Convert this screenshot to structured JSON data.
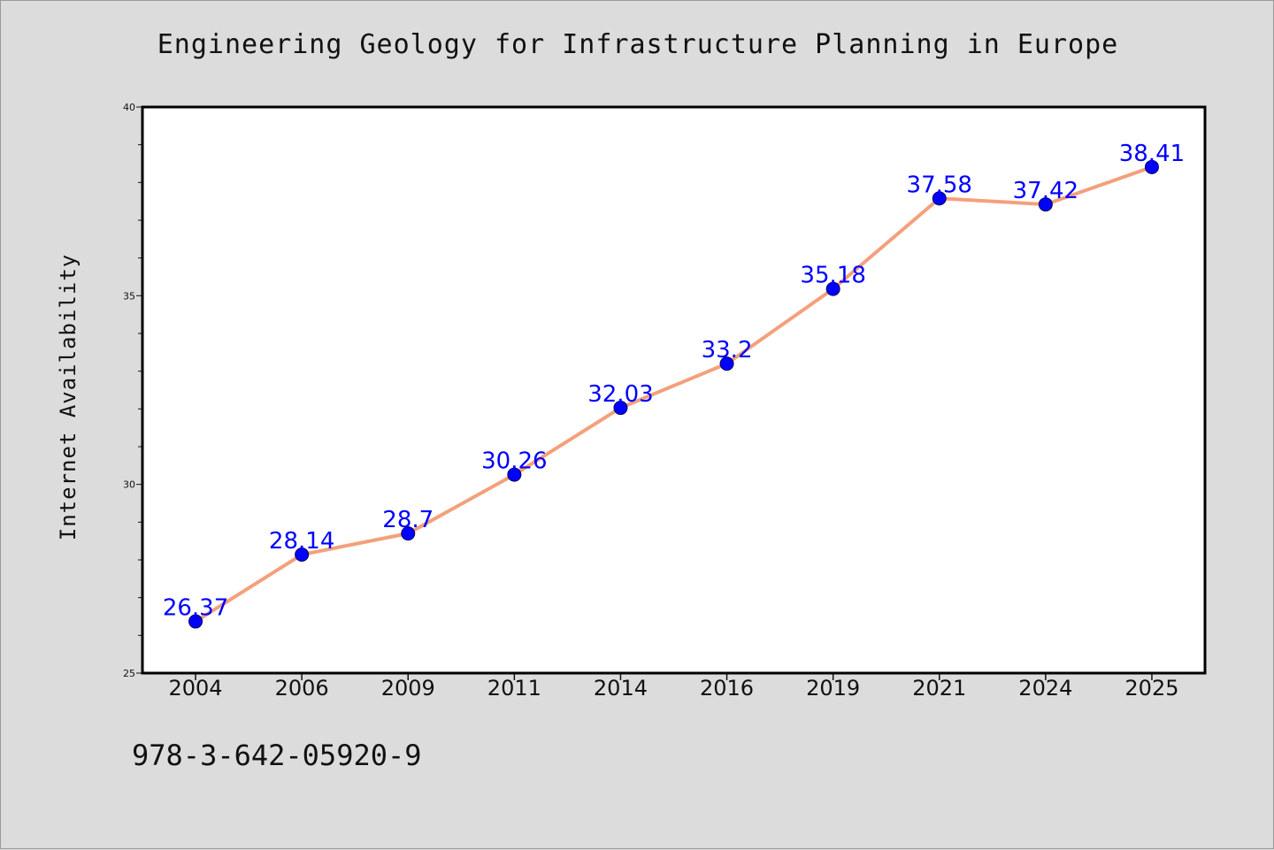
{
  "figure": {
    "title": "Engineering Geology for Infrastructure Planning in Europe",
    "footer_text": "978-3-642-05920-9",
    "background_color": "#dcdcdc"
  },
  "chart_data": {
    "type": "line",
    "title": "Engineering Geology for Infrastructure Planning in Europe",
    "xlabel": "",
    "ylabel": "Internet Availability",
    "categories": [
      "2004",
      "2006",
      "2009",
      "2011",
      "2014",
      "2016",
      "2019",
      "2021",
      "2024",
      "2025"
    ],
    "series": [
      {
        "values": [
          26.37,
          28.14,
          28.7,
          30.26,
          32.03,
          33.2,
          35.18,
          37.58,
          37.42,
          38.41
        ],
        "line_color": "#f4a07c",
        "marker_color": "#0000ff"
      }
    ],
    "data_labels": [
      "26.37",
      "28.14",
      "28.7",
      "30.26",
      "32.03",
      "33.2",
      "35.18",
      "37.58",
      "37.42",
      "38.41"
    ],
    "ylim": [
      25,
      40
    ],
    "y_ticks": [
      25,
      30,
      35,
      40
    ],
    "y_minor_step": 1,
    "grid": false,
    "legend": "none"
  }
}
